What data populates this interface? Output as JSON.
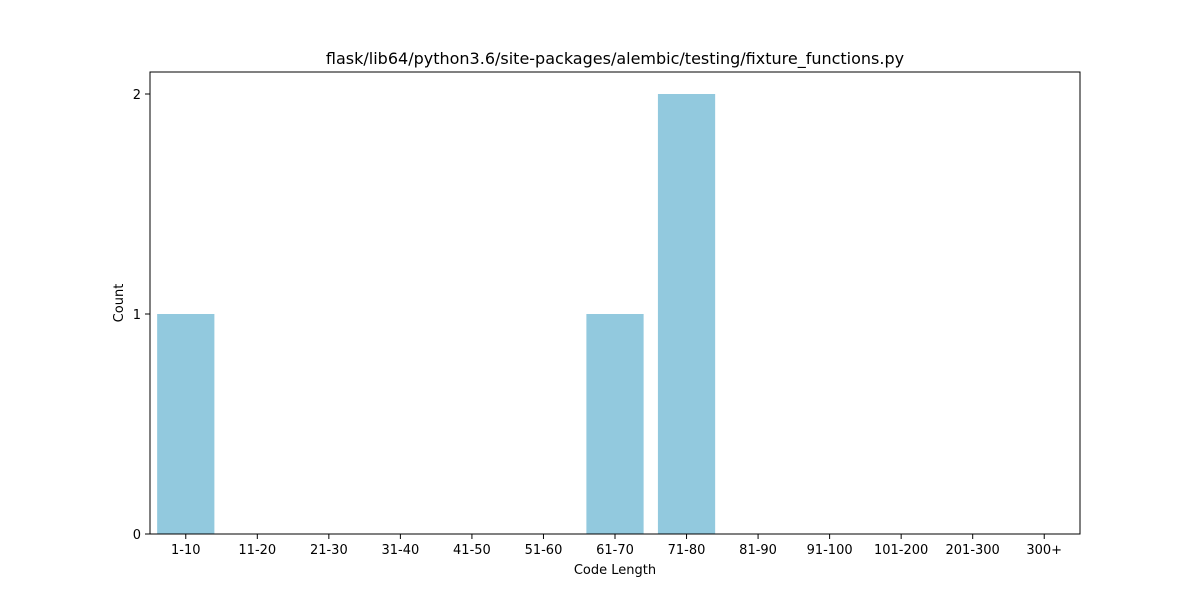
{
  "chart_data": {
    "type": "bar",
    "title": "flask/lib64/python3.6/site-packages/alembic/testing/fixture_functions.py",
    "xlabel": "Code Length",
    "ylabel": "Count",
    "categories": [
      "1-10",
      "11-20",
      "21-30",
      "31-40",
      "41-50",
      "51-60",
      "61-70",
      "71-80",
      "81-90",
      "91-100",
      "101-200",
      "201-300",
      "300+"
    ],
    "values": [
      1,
      0,
      0,
      0,
      0,
      0,
      1,
      2,
      0,
      0,
      0,
      0,
      0
    ],
    "ylim": [
      0,
      2.1
    ],
    "yticks": [
      0,
      1,
      2
    ],
    "bar_color": "#92c9de",
    "grid": false,
    "legend": "none"
  }
}
